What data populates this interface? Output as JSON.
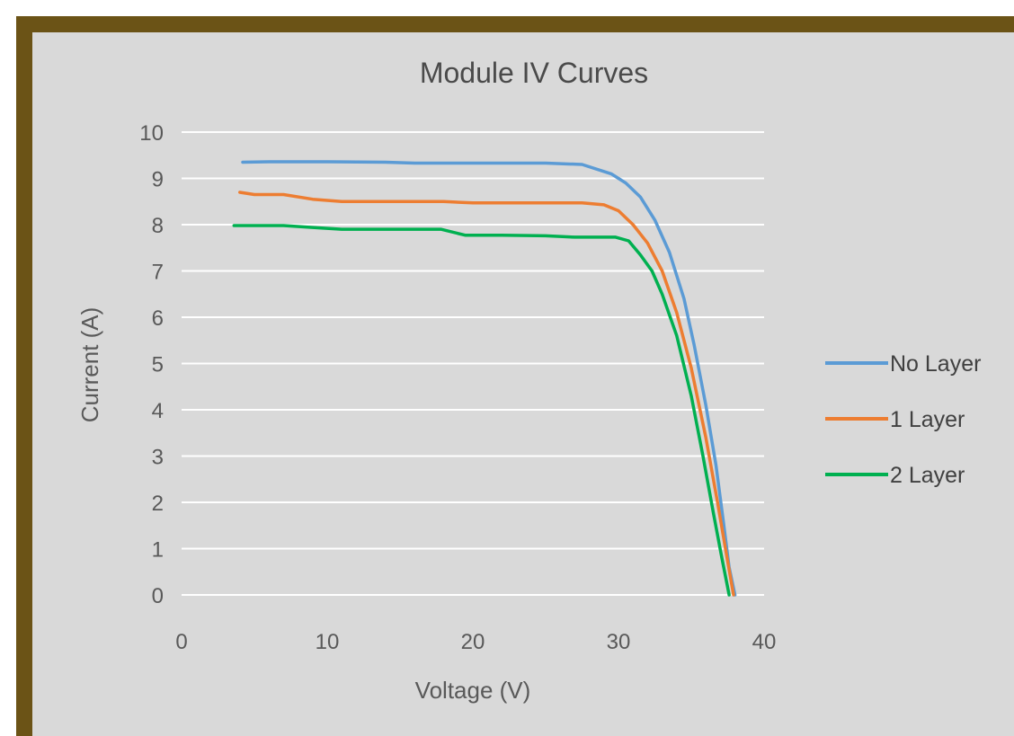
{
  "chart_data": {
    "type": "line",
    "title": "Module IV Curves",
    "xlabel": "Voltage (V)",
    "ylabel": "Current (A)",
    "xlim": [
      0,
      40
    ],
    "ylim": [
      0,
      10
    ],
    "xticks": [
      0,
      10,
      20,
      30,
      40
    ],
    "yticks": [
      0,
      1,
      2,
      3,
      4,
      5,
      6,
      7,
      8,
      9,
      10
    ],
    "grid": "horizontal",
    "legend_position": "right",
    "series": [
      {
        "name": "No Layer",
        "color": "#5b9bd5",
        "points": [
          [
            4.2,
            9.35
          ],
          [
            6,
            9.36
          ],
          [
            10,
            9.36
          ],
          [
            14,
            9.35
          ],
          [
            16,
            9.33
          ],
          [
            20,
            9.33
          ],
          [
            25,
            9.33
          ],
          [
            27.5,
            9.3
          ],
          [
            29.5,
            9.1
          ],
          [
            30.5,
            8.9
          ],
          [
            31.5,
            8.6
          ],
          [
            32.5,
            8.1
          ],
          [
            33.5,
            7.4
          ],
          [
            34.5,
            6.4
          ],
          [
            35.2,
            5.4
          ],
          [
            36,
            4.1
          ],
          [
            36.7,
            2.8
          ],
          [
            37.2,
            1.6
          ],
          [
            37.6,
            0.6
          ],
          [
            38.0,
            0
          ]
        ]
      },
      {
        "name": "1 Layer",
        "color": "#ed7d31",
        "points": [
          [
            4,
            8.7
          ],
          [
            5,
            8.65
          ],
          [
            7,
            8.65
          ],
          [
            9,
            8.55
          ],
          [
            11,
            8.5
          ],
          [
            15,
            8.5
          ],
          [
            18,
            8.5
          ],
          [
            20,
            8.47
          ],
          [
            25,
            8.47
          ],
          [
            27.5,
            8.47
          ],
          [
            29,
            8.43
          ],
          [
            30,
            8.3
          ],
          [
            31,
            8.0
          ],
          [
            32,
            7.6
          ],
          [
            33,
            7.0
          ],
          [
            34,
            6.1
          ],
          [
            35,
            4.9
          ],
          [
            36,
            3.4
          ],
          [
            36.8,
            2.0
          ],
          [
            37.4,
            0.9
          ],
          [
            37.9,
            0
          ]
        ]
      },
      {
        "name": "2 Layer",
        "color": "#00b050",
        "points": [
          [
            3.6,
            7.98
          ],
          [
            7,
            7.98
          ],
          [
            9,
            7.94
          ],
          [
            11,
            7.9
          ],
          [
            15,
            7.9
          ],
          [
            17.8,
            7.9
          ],
          [
            19.5,
            7.77
          ],
          [
            22,
            7.77
          ],
          [
            25,
            7.76
          ],
          [
            27,
            7.73
          ],
          [
            29.8,
            7.73
          ],
          [
            30.7,
            7.65
          ],
          [
            31.5,
            7.35
          ],
          [
            32.3,
            7.0
          ],
          [
            33,
            6.5
          ],
          [
            34,
            5.6
          ],
          [
            35,
            4.3
          ],
          [
            35.8,
            3.0
          ],
          [
            36.5,
            1.8
          ],
          [
            37.1,
            0.8
          ],
          [
            37.6,
            0
          ]
        ]
      }
    ]
  }
}
